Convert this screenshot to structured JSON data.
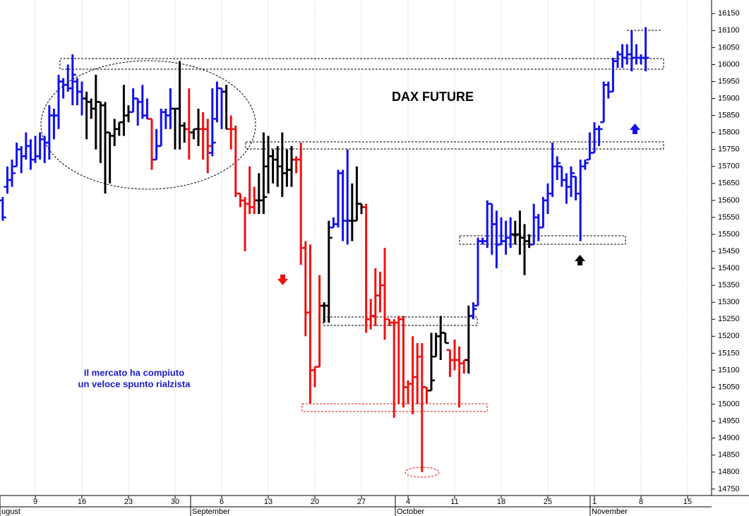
{
  "chart_data": {
    "type": "ohlc",
    "title": "DAX FUTURE",
    "note": [
      "Il mercato ha compiuto",
      "un veloce spunto rialzista"
    ],
    "xlim": [
      -0.58,
      152.15
    ],
    "ylim": [
      14731,
      16190
    ],
    "xticks": [
      {
        "value": 7,
        "label": "9"
      },
      {
        "value": 17,
        "label": "16"
      },
      {
        "value": 27,
        "label": "23"
      },
      {
        "value": 37,
        "label": "30"
      },
      {
        "value": 47,
        "label": "6"
      },
      {
        "value": 57,
        "label": "13"
      },
      {
        "value": 67,
        "label": "20"
      },
      {
        "value": 77,
        "label": "27"
      },
      {
        "value": 87,
        "label": "4"
      },
      {
        "value": 97,
        "label": "11"
      },
      {
        "value": 107,
        "label": "18"
      },
      {
        "value": 117,
        "label": "25"
      },
      {
        "value": 127,
        "label": "1"
      },
      {
        "value": 137,
        "label": "8"
      },
      {
        "value": 147,
        "label": "15"
      }
    ],
    "month_ticks": [
      {
        "value": -0.58,
        "label": "ugust"
      },
      {
        "value": 40.33,
        "label": "September"
      },
      {
        "value": 84.27,
        "label": "October"
      },
      {
        "value": 126.09,
        "label": "November"
      }
    ],
    "yticks": [
      14750,
      14800,
      14850,
      14900,
      14950,
      15000,
      15050,
      15100,
      15150,
      15200,
      15250,
      15300,
      15350,
      15400,
      15450,
      15500,
      15550,
      15600,
      15650,
      15700,
      15750,
      15800,
      15850,
      15900,
      15950,
      16000,
      16050,
      16100,
      16150
    ],
    "grid": "x",
    "ohlc": [
      [
        15600,
        15610,
        15540,
        15550
      ],
      [
        15640,
        15700,
        15620,
        15660
      ],
      [
        15660,
        15720,
        15640,
        15680
      ],
      [
        15700,
        15770,
        15700,
        15750
      ],
      [
        15750,
        15760,
        15680,
        15730
      ],
      [
        15730,
        15800,
        15720,
        15760
      ],
      [
        15760,
        15780,
        15690,
        15720
      ],
      [
        15720,
        15790,
        15710,
        15730
      ],
      [
        15730,
        15800,
        15720,
        15780
      ],
      [
        15780,
        15790,
        15710,
        15770
      ],
      [
        15770,
        15880,
        15720,
        15850
      ],
      [
        15850,
        15870,
        15780,
        15850
      ],
      [
        15850,
        15970,
        15810,
        15950
      ],
      [
        15950,
        15960,
        15900,
        15940
      ],
      [
        15940,
        16000,
        15920,
        15930
      ],
      [
        15930,
        16030,
        15880,
        15970
      ],
      [
        15950,
        15960,
        15880,
        15920
      ],
      [
        15920,
        15950,
        15850,
        15900
      ],
      [
        15900,
        15920,
        15780,
        15890
      ],
      [
        15890,
        15900,
        15840,
        15870
      ],
      [
        15870,
        15970,
        15750,
        15890
      ],
      [
        15890,
        15890,
        15710,
        15880
      ],
      [
        15880,
        15890,
        15620,
        15800
      ],
      [
        15800,
        15800,
        15650,
        15790
      ],
      [
        15790,
        15840,
        15760,
        15810
      ],
      [
        15810,
        15830,
        15790,
        15830
      ],
      [
        15830,
        15940,
        15790,
        15850
      ],
      [
        15850,
        15880,
        15830,
        15860
      ],
      [
        15860,
        15930,
        15860,
        15900
      ],
      [
        15900,
        15900,
        15820,
        15890
      ],
      [
        15890,
        15940,
        15840,
        15850
      ],
      [
        15850,
        15900,
        15840,
        15840
      ],
      [
        15840,
        15840,
        15690,
        15720
      ],
      [
        15720,
        15810,
        15720,
        15760
      ],
      [
        15760,
        15870,
        15760,
        15860
      ],
      [
        15860,
        15870,
        15810,
        15850
      ],
      [
        15850,
        15930,
        15810,
        15870
      ],
      [
        15870,
        15870,
        15750,
        15870
      ],
      [
        15870,
        16010,
        15750,
        15820
      ],
      [
        15820,
        15830,
        15770,
        15810
      ],
      [
        15810,
        15930,
        15720,
        15800
      ],
      [
        15800,
        15810,
        15780,
        15810
      ],
      [
        15810,
        15870,
        15760,
        15810
      ],
      [
        15810,
        15860,
        15720,
        15810
      ],
      [
        15810,
        15840,
        15680,
        15760
      ],
      [
        15740,
        15930,
        15730,
        15770
      ],
      [
        15840,
        15950,
        15830,
        15930
      ],
      [
        15930,
        15930,
        15810,
        15920
      ],
      [
        15920,
        15940,
        15810,
        15810
      ],
      [
        15810,
        15850,
        15750,
        15810
      ],
      [
        15810,
        15820,
        15610,
        15620
      ],
      [
        15620,
        15620,
        15580,
        15600
      ],
      [
        15600,
        15610,
        15450,
        15590
      ],
      [
        15590,
        15700,
        15560,
        15580
      ],
      [
        15580,
        15640,
        15560,
        15600
      ],
      [
        15600,
        15680,
        15560,
        15600
      ],
      [
        15600,
        15800,
        15560,
        15610
      ],
      [
        15700,
        15790,
        15620,
        15730
      ],
      [
        15730,
        15750,
        15650,
        15720
      ],
      [
        15720,
        15760,
        15640,
        15700
      ],
      [
        15700,
        15800,
        15610,
        15680
      ],
      [
        15680,
        15750,
        15640,
        15690
      ],
      [
        15690,
        15760,
        15640,
        15720
      ],
      [
        15720,
        15730,
        15680,
        15720
      ],
      [
        15720,
        15770,
        15410,
        15460
      ],
      [
        15460,
        15480,
        15200,
        15270
      ],
      [
        15270,
        15470,
        15000,
        15100
      ],
      [
        15100,
        15110,
        15050,
        15110
      ],
      [
        15110,
        15380,
        15110,
        15290
      ],
      [
        15290,
        15300,
        15240,
        15290
      ],
      [
        15290,
        15540,
        15240,
        15490
      ],
      [
        15520,
        15550,
        15520,
        15530
      ],
      [
        15530,
        15690,
        15520,
        15680
      ],
      [
        15680,
        15690,
        15480,
        15540
      ],
      [
        15540,
        15750,
        15470,
        15540
      ],
      [
        15540,
        15650,
        15480,
        15540
      ],
      [
        15540,
        15700,
        15540,
        15590
      ],
      [
        15590,
        15590,
        15560,
        15580
      ],
      [
        15580,
        15590,
        15210,
        15250
      ],
      [
        15250,
        15310,
        15220,
        15260
      ],
      [
        15260,
        15400,
        15230,
        15320
      ],
      [
        15320,
        15390,
        15270,
        15350
      ],
      [
        15350,
        15460,
        15190,
        15250
      ],
      [
        15250,
        15250,
        15230,
        15240
      ],
      [
        15240,
        15250,
        14960,
        15240
      ],
      [
        15240,
        15260,
        15000,
        15250
      ],
      [
        15250,
        15260,
        14990,
        15050
      ],
      [
        15050,
        15070,
        15000,
        15060
      ],
      [
        15060,
        15200,
        14970,
        15080
      ],
      [
        15080,
        15180,
        15000,
        15140
      ],
      [
        15140,
        15180,
        14800,
        15050
      ],
      [
        15050,
        15050,
        15000,
        15040
      ],
      [
        15040,
        15210,
        15040,
        15070
      ],
      [
        15140,
        15210,
        15140,
        15200
      ],
      [
        15200,
        15260,
        15130,
        15210
      ],
      [
        15210,
        15210,
        15180,
        15180
      ],
      [
        15160,
        15160,
        15080,
        15130
      ],
      [
        15130,
        15190,
        15100,
        15130
      ],
      [
        15130,
        15170,
        14990,
        15120
      ],
      [
        15120,
        15130,
        15090,
        15130
      ],
      [
        15130,
        15290,
        15090,
        15260
      ],
      [
        15260,
        15300,
        15250,
        15280
      ],
      [
        15290,
        15490,
        15290,
        15480
      ],
      [
        15480,
        15490,
        15470,
        15480
      ],
      [
        15480,
        15600,
        15460,
        15590
      ],
      [
        15590,
        15590,
        15440,
        15530
      ],
      [
        15530,
        15570,
        15400,
        15470
      ],
      [
        15470,
        15550,
        15470,
        15480
      ],
      [
        15480,
        15540,
        15440,
        15490
      ],
      [
        15490,
        15550,
        15460,
        15500
      ],
      [
        15500,
        15540,
        15470,
        15500
      ],
      [
        15500,
        15570,
        15440,
        15490
      ],
      [
        15490,
        15530,
        15380,
        15480
      ],
      [
        15480,
        15500,
        15460,
        15470
      ],
      [
        15470,
        15590,
        15470,
        15550
      ],
      [
        15550,
        15560,
        15480,
        15520
      ],
      [
        15520,
        15610,
        15520,
        15600
      ],
      [
        15600,
        15650,
        15560,
        15620
      ],
      [
        15620,
        15770,
        15610,
        15700
      ],
      [
        15700,
        15730,
        15660,
        15710
      ],
      [
        15700,
        15700,
        15640,
        15660
      ],
      [
        15660,
        15680,
        15590,
        15640
      ],
      [
        15640,
        15700,
        15610,
        15680
      ],
      [
        15670,
        15670,
        15600,
        15620
      ],
      [
        15620,
        15720,
        15480,
        15700
      ],
      [
        15700,
        15720,
        15690,
        15710
      ],
      [
        15720,
        15800,
        15720,
        15740
      ],
      [
        15740,
        15830,
        15740,
        15810
      ],
      [
        15810,
        15820,
        15760,
        15810
      ],
      [
        15830,
        15950,
        15830,
        15940
      ],
      [
        15940,
        15950,
        15900,
        15920
      ],
      [
        15920,
        16020,
        15920,
        16010
      ],
      [
        16010,
        16040,
        15990,
        16030
      ],
      [
        16030,
        16060,
        15990,
        16020
      ],
      [
        16020,
        16060,
        16000,
        16030
      ],
      [
        16030,
        16100,
        15980,
        16020
      ],
      [
        16020,
        16060,
        16000,
        16020
      ],
      [
        16020,
        16030,
        16000,
        16020
      ],
      [
        16020,
        16110,
        15980,
        16020
      ]
    ],
    "colors": [
      "#11e",
      "#11e",
      "#11e",
      "#11e",
      "#11e",
      "#11e",
      "#11e",
      "#11e",
      "#11e",
      "#11e",
      "#11e",
      "#11e",
      "#11e",
      "#11e",
      "#11e",
      "#11e",
      "#11e",
      "#11e",
      "#000",
      "#000",
      "#000",
      "#000",
      "#000",
      "#000",
      "#000",
      "#000",
      "#000",
      "#000",
      "#11e",
      "#11e",
      "#11e",
      "#11e",
      "#e11",
      "#11e",
      "#11e",
      "#11e",
      "#11e",
      "#000",
      "#000",
      "#000",
      "#e11",
      "#000",
      "#000",
      "#e11",
      "#e11",
      "#11e",
      "#11e",
      "#11e",
      "#000",
      "#e11",
      "#e11",
      "#e11",
      "#e11",
      "#e11",
      "#e11",
      "#000",
      "#000",
      "#000",
      "#000",
      "#000",
      "#000",
      "#000",
      "#000",
      "#e11",
      "#e11",
      "#e11",
      "#e11",
      "#e11",
      "#e11",
      "#000",
      "#000",
      "#11e",
      "#11e",
      "#11e",
      "#11e",
      "#000",
      "#000",
      "#000",
      "#e11",
      "#e11",
      "#e11",
      "#e11",
      "#e11",
      "#e11",
      "#e11",
      "#e11",
      "#e11",
      "#e11",
      "#e11",
      "#e11",
      "#e11",
      "#e11",
      "#000",
      "#000",
      "#000",
      "#000",
      "#e11",
      "#e11",
      "#e11",
      "#e11",
      "#000",
      "#11e",
      "#11e",
      "#11e",
      "#11e",
      "#11e",
      "#11e",
      "#11e",
      "#11e",
      "#11e",
      "#000",
      "#000",
      "#000",
      "#000",
      "#11e",
      "#11e",
      "#11e",
      "#11e",
      "#11e",
      "#11e",
      "#11e",
      "#11e",
      "#11e",
      "#11e",
      "#11e",
      "#11e",
      "#11e",
      "#11e",
      "#11e",
      "#11e",
      "#11e",
      "#11e",
      "#11e",
      "#11e",
      "#11e",
      "#11e",
      "#11e",
      "#11e",
      "#11e"
    ]
  }
}
